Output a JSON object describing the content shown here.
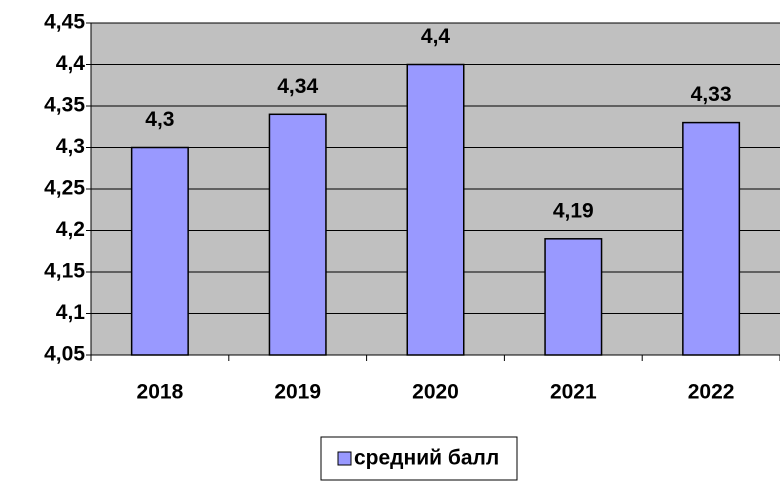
{
  "chart_data": {
    "type": "bar",
    "categories": [
      "2018",
      "2019",
      "2020",
      "2021",
      "2022"
    ],
    "series": [
      {
        "name": "средний балл",
        "color": "#9999ff",
        "values": [
          4.3,
          4.34,
          4.4,
          4.19,
          4.33
        ],
        "value_labels": [
          "4,3",
          "4,34",
          "4,4",
          "4,19",
          "4,33"
        ]
      }
    ],
    "ylim": [
      4.05,
      4.45
    ],
    "yticks": [
      {
        "value": 4.05,
        "label": "4,05"
      },
      {
        "value": 4.1,
        "label": "4,1"
      },
      {
        "value": 4.15,
        "label": "4,15"
      },
      {
        "value": 4.2,
        "label": "4,2"
      },
      {
        "value": 4.25,
        "label": "4,25"
      },
      {
        "value": 4.3,
        "label": "4,3"
      },
      {
        "value": 4.35,
        "label": "4,35"
      },
      {
        "value": 4.4,
        "label": "4,4"
      },
      {
        "value": 4.45,
        "label": "4,45"
      }
    ],
    "grid": true,
    "plot_background": "#c0c0c0",
    "legend": "bottom"
  }
}
